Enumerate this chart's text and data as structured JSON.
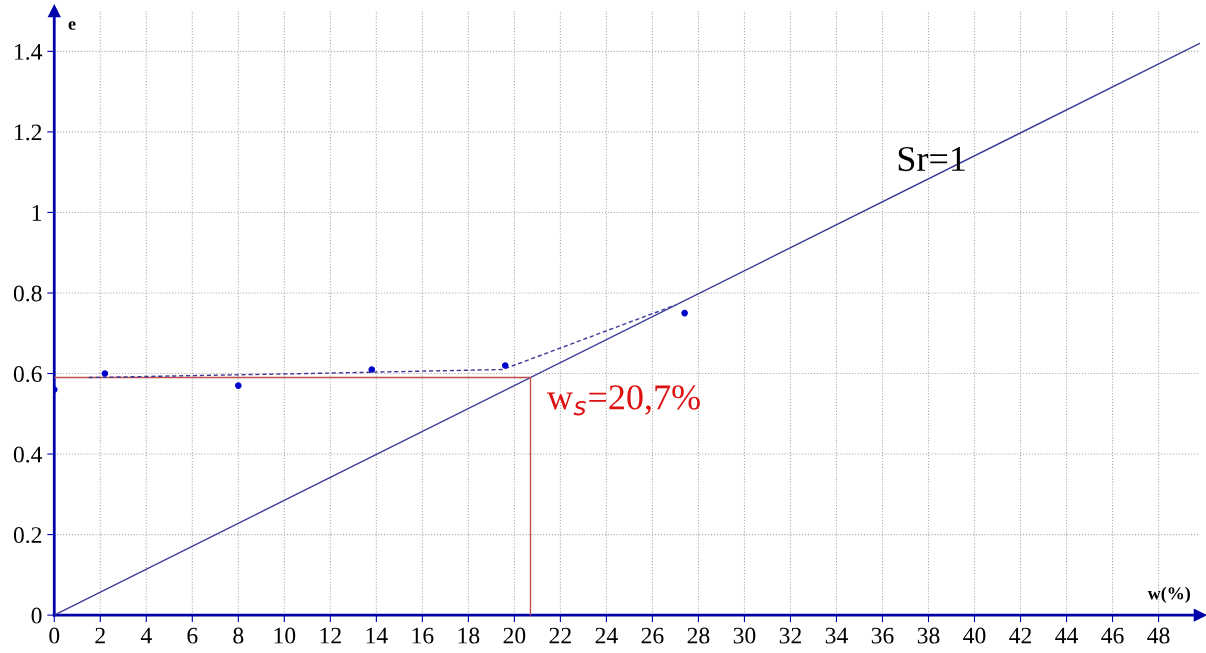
{
  "chart_data": {
    "type": "scatter",
    "xlabel": "w(%)",
    "ylabel": "e",
    "series": [
      {
        "color": "#0000cc",
        "marker": "circle",
        "x": [
          0,
          2.2,
          8,
          13.8,
          19.6,
          27.4
        ],
        "values": [
          0.56,
          0.6,
          0.57,
          0.61,
          0.62,
          0.75
        ]
      },
      {
        "type": "line",
        "color": "#3a3a99",
        "line_style": "solid",
        "x": [
          0,
          49.8
        ],
        "values": [
          0,
          1.42
        ]
      },
      {
        "type": "line",
        "color": "#3a3a99",
        "line_style": "dashed",
        "x": [
          1.5,
          11,
          19.5,
          27
        ],
        "values": [
          0.59,
          0.6,
          0.61,
          0.77
        ]
      },
      {
        "type": "line",
        "color": "#c0504d",
        "line_style": "solid",
        "x": [
          0,
          20.7,
          20.7
        ],
        "values": [
          0.59,
          0.59,
          0
        ]
      }
    ],
    "annotations": [
      "Sr=1",
      "w$_{s}$=20,7%"
    ],
    "xlim": [
      0,
      49.8
    ],
    "ylim": [
      0,
      1.5
    ],
    "xticks": [
      0,
      2,
      4,
      6,
      8,
      10,
      12,
      14,
      16,
      18,
      20,
      22,
      24,
      26,
      28,
      30,
      32,
      34,
      36,
      38,
      40,
      42,
      44,
      46,
      48
    ],
    "yticks": [
      0,
      0.2,
      0.4,
      0.6,
      0.8,
      1,
      1.2,
      1.4
    ],
    "grid": true
  }
}
